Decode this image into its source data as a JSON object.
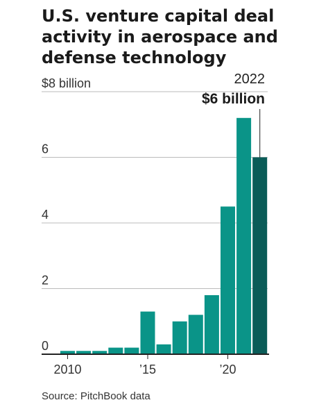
{
  "chart_data": {
    "type": "bar",
    "title": "U.S. venture capital deal activity in aerospace and defense technology",
    "source": "Source: PitchBook data",
    "unit": "billion USD",
    "x": [
      2010,
      2011,
      2012,
      2013,
      2014,
      2015,
      2016,
      2017,
      2018,
      2019,
      2020,
      2021,
      2022
    ],
    "values": [
      0.1,
      0.1,
      0.1,
      0.2,
      0.2,
      1.3,
      0.3,
      1.0,
      1.2,
      1.8,
      4.5,
      7.2,
      6.0
    ],
    "ylim": [
      0,
      8
    ],
    "yticks": [
      {
        "value": 8,
        "label": "$8 billion"
      },
      {
        "value": 6,
        "label": "6"
      },
      {
        "value": 4,
        "label": "4"
      },
      {
        "value": 2,
        "label": "2"
      },
      {
        "value": 0,
        "label": "0"
      }
    ],
    "xticks": [
      {
        "value": 2010,
        "label": "2010"
      },
      {
        "value": 2015,
        "label": "’15"
      },
      {
        "value": 2020,
        "label": "’20"
      }
    ],
    "colors": {
      "bar": "#0a9488",
      "highlight": "#0b5c58",
      "grid": "#bbbbbb",
      "axis": "#222222"
    },
    "highlight": {
      "year": 2022,
      "year_label": "2022",
      "value_label": "$6 billion"
    }
  }
}
